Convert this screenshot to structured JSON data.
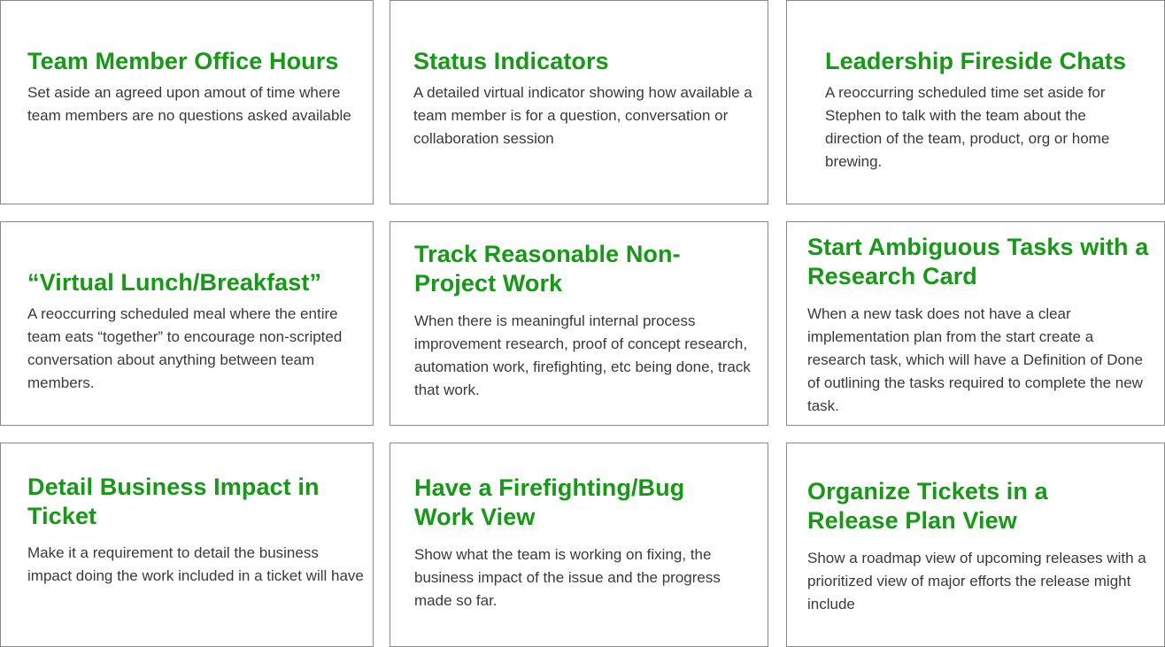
{
  "colors": {
    "title_green": "#149a14",
    "body_text": "#3a3a3a",
    "card_border": "#8a8a8a",
    "background": "#ffffff"
  },
  "cards": [
    {
      "title": "Team Member Office Hours",
      "body": "Set aside an agreed upon amout of time where team members are no questions asked available"
    },
    {
      "title": "Status Indicators",
      "body": "A detailed virtual indicator showing how available a team member is for a question, conversation or collaboration session"
    },
    {
      "title": "Leadership Fireside Chats",
      "body": "A reoccurring scheduled time set aside for Stephen to talk with the team about the direction of the team, product, org or home brewing."
    },
    {
      "title": "“Virtual Lunch/Breakfast”",
      "body": "A reoccurring scheduled meal where the entire team eats “together” to encourage non-scripted conversation about anything between team members."
    },
    {
      "title": "Track Reasonable Non-Project Work",
      "body": "When there is meaningful internal process improvement research, proof of concept research, automation work, firefighting, etc being done, track that work."
    },
    {
      "title": "Start Ambiguous Tasks with a Research Card",
      "body": "When a new task does not have a clear implementation plan from the start create a research task, which will have a Definition of Done of outlining the tasks required to complete the new task."
    },
    {
      "title": "Detail Business Impact in Ticket",
      "body": "Make it a requirement to detail the business impact doing the work included in a ticket will have"
    },
    {
      "title": "Have a Firefighting/Bug Work View",
      "body": "Show what the team is working on fixing, the business impact of the issue and the progress made so far."
    },
    {
      "title": "Organize Tickets in a Release Plan View",
      "body": "Show a roadmap view of upcoming releases with a prioritized view of major efforts the release might include"
    }
  ]
}
